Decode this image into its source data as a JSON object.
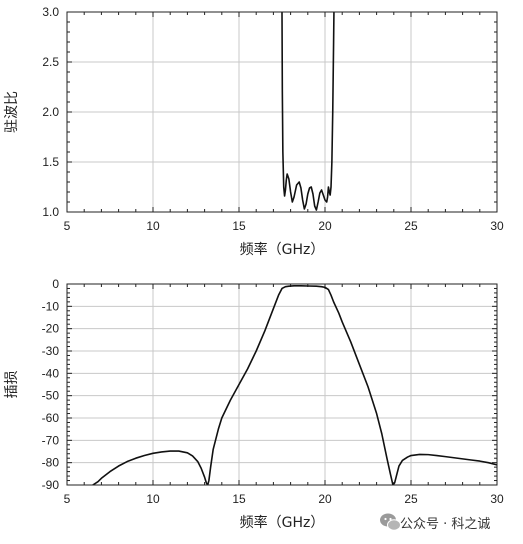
{
  "chart_data": [
    {
      "type": "line",
      "title": "",
      "xlabel": "频率（GHz）",
      "ylabel": "驻波比",
      "xlim": [
        5,
        30
      ],
      "ylim": [
        1.0,
        3.0
      ],
      "xticks": [
        "5",
        "10",
        "15",
        "20",
        "25",
        "30"
      ],
      "yticks": [
        "1.0",
        "1.5",
        "2.0",
        "2.5",
        "3.0"
      ],
      "grid": true,
      "series": [
        {
          "x": [
            17.5,
            17.52,
            17.55,
            17.6,
            17.65,
            17.7,
            17.75,
            17.8,
            17.9,
            18.0,
            18.1,
            18.2,
            18.35,
            18.5,
            18.6,
            18.7,
            18.8,
            18.9,
            19.0,
            19.1,
            19.2,
            19.3,
            19.4,
            19.5,
            19.6,
            19.7,
            19.8,
            19.9,
            20.0,
            20.1,
            20.15,
            20.2,
            20.25,
            20.3,
            20.35,
            20.4,
            20.45,
            20.5,
            20.52
          ],
          "y": [
            3.0,
            2.2,
            1.6,
            1.25,
            1.16,
            1.22,
            1.32,
            1.38,
            1.33,
            1.2,
            1.1,
            1.15,
            1.27,
            1.3,
            1.24,
            1.12,
            1.03,
            1.08,
            1.18,
            1.24,
            1.25,
            1.18,
            1.06,
            1.02,
            1.1,
            1.19,
            1.22,
            1.17,
            1.12,
            1.1,
            1.15,
            1.25,
            1.2,
            1.17,
            1.25,
            1.5,
            2.0,
            2.7,
            3.0
          ]
        }
      ]
    },
    {
      "type": "line",
      "title": "",
      "xlabel": "频率（GHz）",
      "ylabel": "插损",
      "xlim": [
        5,
        30
      ],
      "ylim": [
        -90,
        0
      ],
      "xticks": [
        "5",
        "10",
        "15",
        "20",
        "25",
        "30"
      ],
      "yticks": [
        "0",
        "-10",
        "-20",
        "-30",
        "-40",
        "-50",
        "-60",
        "-70",
        "-80",
        "-90"
      ],
      "grid": true,
      "series": [
        {
          "x": [
            6.5,
            6.8,
            7,
            7.5,
            8,
            8.5,
            9,
            9.5,
            10,
            10.5,
            11,
            11.5,
            12,
            12.3,
            12.6,
            12.8,
            13.0,
            13.1,
            13.18,
            13.25,
            13.35,
            13.5,
            13.8,
            14,
            14.5,
            15,
            15.5,
            16,
            16.5,
            17,
            17.3,
            17.5,
            17.7,
            17.9,
            18.2,
            18.6,
            19,
            19.5,
            19.8,
            20.0,
            20.2,
            20.35,
            20.5,
            20.8,
            21,
            21.5,
            22,
            22.5,
            23,
            23.3,
            23.6,
            23.8,
            23.95,
            24.05,
            24.15,
            24.3,
            24.5,
            24.8,
            25,
            25.5,
            26,
            26.5,
            27,
            27.5,
            28,
            28.5,
            29,
            29.5,
            30
          ],
          "y": [
            -90,
            -88.5,
            -87,
            -84,
            -81.5,
            -79.5,
            -78,
            -76.8,
            -75.8,
            -75.2,
            -74.8,
            -74.8,
            -75.6,
            -77,
            -79.5,
            -82.5,
            -86.5,
            -89,
            -90,
            -88,
            -82,
            -74,
            -65,
            -60,
            -52,
            -45,
            -38,
            -30,
            -21,
            -11,
            -5,
            -2,
            -1.2,
            -1,
            -0.8,
            -0.8,
            -0.9,
            -1.0,
            -1.2,
            -1.5,
            -2.5,
            -5,
            -8,
            -13,
            -17,
            -26,
            -36,
            -46,
            -58,
            -67,
            -78,
            -85,
            -90,
            -89,
            -86,
            -81.5,
            -79,
            -77.5,
            -76.8,
            -76.3,
            -76.4,
            -76.8,
            -77.3,
            -77.8,
            -78.3,
            -78.8,
            -79.3,
            -80,
            -81
          ]
        }
      ]
    }
  ],
  "watermark": {
    "text": "公众号 · 科之诚",
    "icon": "wechat-icon"
  }
}
